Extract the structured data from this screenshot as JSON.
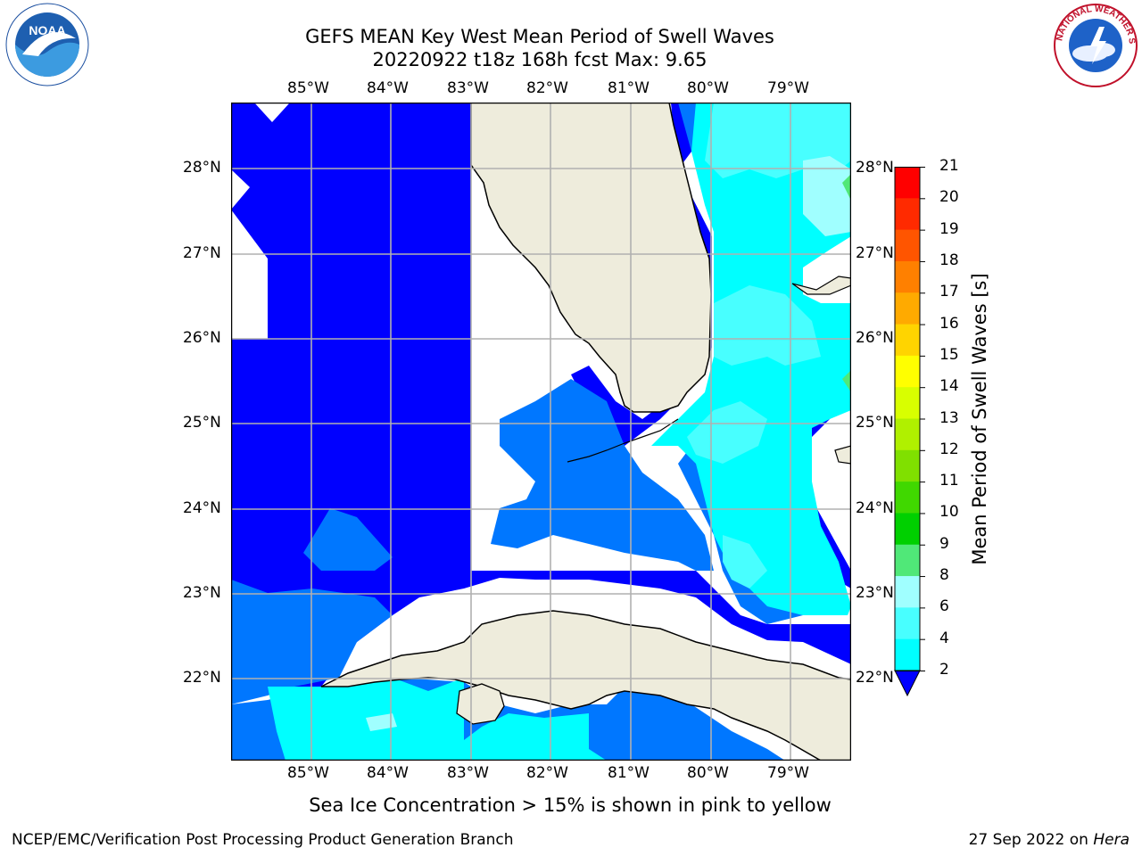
{
  "title": {
    "line1": "GEFS MEAN Key West Mean Period of Swell Waves",
    "line2": "20220922 t18z 168h fcst   Max: 9.65"
  },
  "map": {
    "lon_labels": [
      "85°W",
      "84°W",
      "83°W",
      "82°W",
      "81°W",
      "80°W",
      "79°W"
    ],
    "lat_labels": [
      "28°N",
      "27°N",
      "26°N",
      "25°N",
      "24°N",
      "23°N",
      "22°N"
    ],
    "colors": {
      "deep_blue": "#0000ff",
      "mid_blue": "#0077ff",
      "cyan": "#00ffff",
      "light_cyan": "#48ffff",
      "pale_cyan": "#a0ffff",
      "land": "#eeecdc",
      "grid": "#b0b0b0"
    }
  },
  "colorbar": {
    "label": "Mean Period of Swell Waves [s]",
    "ticks": [
      "21",
      "20",
      "19",
      "18",
      "17",
      "16",
      "15",
      "14",
      "13",
      "12",
      "11",
      "10",
      "9",
      "8",
      "6",
      "4",
      "2"
    ],
    "colors": [
      "#ff0000",
      "#ff2a00",
      "#ff5500",
      "#ff8000",
      "#ffaa00",
      "#ffd400",
      "#ffff00",
      "#d8ff00",
      "#b0f000",
      "#80e000",
      "#40d800",
      "#00d000",
      "#50e878",
      "#a0ffff",
      "#48ffff",
      "#00ffff",
      "#0077ff"
    ],
    "under_color": "#0000ff"
  },
  "caption": "Sea Ice Concentration > 15% is shown in pink to yellow",
  "footer": {
    "left": "NCEP/EMC/Verification Post Processing Product Generation Branch",
    "date": "27 Sep 2022 on ",
    "machine": "Hera"
  },
  "logos": {
    "noaa": "NOAA",
    "nws": "NATIONAL WEATHER SERVICE"
  }
}
